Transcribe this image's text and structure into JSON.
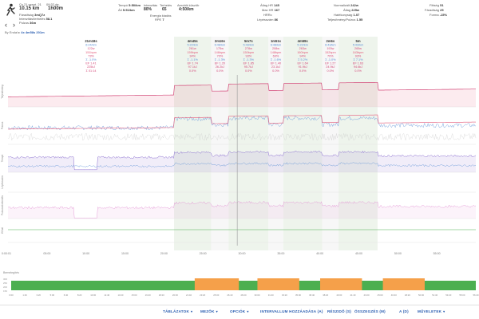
{
  "header": {
    "date": "Cs 21 szept. 21",
    "start_time": "09:32 de.",
    "distance": "10.15 km",
    "duration": "1h00m",
    "fatigue_label": "Fáradtság",
    "fatigue_value": "3mQ7z",
    "load_label": "Intenzitás/terhelés",
    "load_value": "58.1",
    "hrv_label": "Pulzus",
    "hrv_value": "36m",
    "pace_label": "Tempó",
    "pace_value": "5:50/km",
    "avg_label": "Átl",
    "avg_value": "5:51/km",
    "intensity_label": "Intenzitás",
    "intensity_value": "80%",
    "trimp_label": "Terhelés",
    "trimp_value": "65",
    "ga_label": "Aerobik küszöb",
    "ga_value": "4:50/km",
    "energy_label": "Energia kiadás",
    "energy_value": "",
    "rpe_label": "RPE",
    "rpe_value": "7",
    "avg_hr_label": "Átlag HR",
    "avg_hr_value": "145",
    "max_hr_label": "Max HR",
    "max_hr_value": "167",
    "hrrc_label": "HRRc",
    "hrrc_value": "",
    "cadence_label": "Lépésszám",
    "cadence_value": "86",
    "normalized_label": "Normalizált",
    "normalized_value": "242w",
    "avgpow_label": "Átlag",
    "avgpow_value": "225w",
    "efficiency_label": "Hatékonyság",
    "efficiency_value": "1.07",
    "decoupling_label": "Teljesítmény/Pulzus",
    "decoupling_value": "1.55",
    "fitness_label": "Fittség",
    "fitness_value": "51",
    "fatigue2_label": "Fáradtság",
    "fatigue2_value": "25",
    "form_label": "Forma",
    "form_value": "-15%",
    "breadcrumb_prefix": "By Endal ▸",
    "breadcrumb_link": "4x 4m58s 201m"
  },
  "nav": {
    "back": "‹",
    "forward": "›"
  },
  "chart_data": {
    "type": "line",
    "x_ticks": [
      "0:00:01",
      "05:00",
      "10:00",
      "15:00",
      "20:00",
      "25:00",
      "30:00",
      "35:00",
      "40:00",
      "45:00",
      "50:00",
      "55:00"
    ],
    "panel_labels": [
      "Teljesítmény",
      "Pulzus",
      "Tempó",
      "Lépésszám",
      "Pulzusnövekedés",
      "W'bal"
    ],
    "intervals": [
      {
        "title": "21m18s",
        "pace": "6:24/km",
        "power": "122w",
        "hr": "151bpm",
        "pct": "73%",
        "g": "Σ -1.0%",
        "ef": "EF 1.41",
        "w": "225kJ",
        "extra": "Σ 01:14"
      },
      {
        "title": "4m45s",
        "pace": "5:22/km",
        "power": "261w",
        "hr": "159bpm",
        "pct": "34%",
        "g": "Σ -1.1%",
        "ef": "EF 1.74",
        "w": "97.1kJ",
        "extra": "0.0%"
      },
      {
        "title": "2m16s",
        "pace": "6:48/km",
        "power": "175w",
        "hr": "146bpm",
        "pct": "70%",
        "g": "Σ -1.3%",
        "ef": "EF 1.20",
        "w": "26.2kJ",
        "extra": "0.0%"
      },
      {
        "title": "5m7s",
        "pace": "5:43/km",
        "power": "278w",
        "hr": "150bpm",
        "pct": "93%",
        "g": "Σ -1.3%",
        "ef": "EF 1.85",
        "w": "95.7kJ",
        "extra": "0.0%"
      },
      {
        "title": "1m51s",
        "pace": "6:48/km",
        "power": "208w",
        "hr": "148bpm",
        "pct": "69%",
        "g": "Σ -1.6%",
        "ef": "EF 1.40",
        "w": "23.1kJ",
        "extra": "0.0%"
      },
      {
        "title": "4m59s",
        "pace": "5:22/km",
        "power": "263w",
        "hr": "160bpm",
        "pct": "94%",
        "g": "Σ 5.2%",
        "ef": "EF 1.64",
        "w": "91.9kJ",
        "extra": "0.0%"
      },
      {
        "title": "2m6s",
        "pace": "6:43/km",
        "power": "193w",
        "hr": "152bpm",
        "pct": "70%",
        "g": "Σ -1.0%",
        "ef": "EF 1.27",
        "w": "24.9kJ",
        "extra": "0.0%"
      },
      {
        "title": "5m",
        "pace": "5:43/km",
        "power": "265w",
        "hr": "163bpm",
        "pct": "93%",
        "g": "Σ 7.1%",
        "ef": "EF 1.63",
        "w": "94.6kJ",
        "extra": "0.0%"
      }
    ]
  },
  "intervals_strip": {
    "title": "Bemelegítés",
    "time_ticks": [
      "0:00",
      "1:40",
      "3:20",
      "5:00",
      "6:40",
      "8:20",
      "10:00",
      "11:40",
      "13:20",
      "15:00",
      "16:40",
      "18:20",
      "20:00",
      "21:40",
      "23:20",
      "25:00",
      "26:40",
      "28:20",
      "30:00",
      "31:40",
      "33:20",
      "35:00",
      "36:40",
      "38:20",
      "40:00",
      "41:40",
      "43:20",
      "45:00",
      "46:40",
      "48:20",
      "50:00",
      "51:40",
      "53:20",
      "55:00",
      "56:40"
    ],
    "y_ticks": [
      "300",
      "250",
      "200",
      "150"
    ],
    "colors": {
      "green": "#4caf50",
      "orange": "#f5a04a"
    }
  },
  "toolbar": {
    "tables": "TÁBLÁZATOK",
    "fields": "MEZŐK",
    "options": "OPCIÓK",
    "add_interval": "INTERVALLUM HOZZÁADÁSA (A)",
    "split": "RÉSZIDŐ (S)",
    "sum": "ÖSSZEGZÉS (M)",
    "ai": "A (D)",
    "actions": "MŰVELETEK"
  },
  "colors": {
    "power": "#d44a7a",
    "hr": "#e45b7a",
    "pace": "#5a8fd6",
    "cadence": "#8b6fd0",
    "accent": "#2a5db0"
  }
}
